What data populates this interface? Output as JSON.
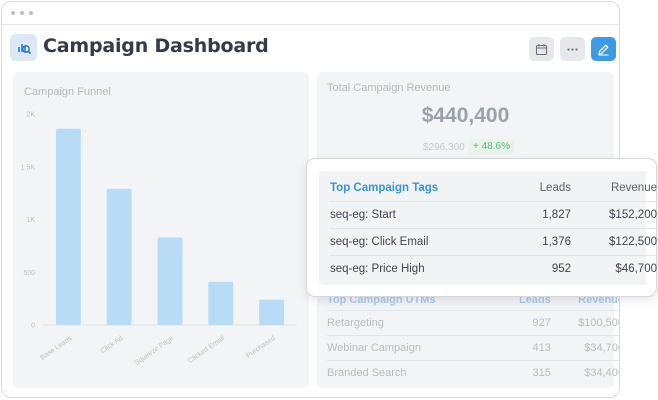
{
  "header": {
    "title": "Campaign Dashboard",
    "app_icon": "chart-search-icon",
    "actions": [
      {
        "icon": "calendar-icon"
      },
      {
        "icon": "more-horizontal-icon"
      },
      {
        "icon": "pencil-icon"
      }
    ]
  },
  "funnel": {
    "title": "Campaign Funnel",
    "chart_data": {
      "type": "bar",
      "categories": [
        "Base Leads",
        "Click Ad",
        "Squeeze Page",
        "Clicked Email",
        "Purchased"
      ],
      "values": [
        1860,
        1290,
        830,
        410,
        240
      ],
      "yticks": [
        "0",
        "500",
        "1K",
        "1.5K",
        "2K"
      ],
      "ylim": [
        0,
        2000
      ],
      "color": "#b8dcf5"
    }
  },
  "revenue": {
    "label": "Total Campaign Revenue",
    "value": "$440,400",
    "previous": "$296,300",
    "change": "+ 48.6%"
  },
  "tags": {
    "headers": [
      "Top Campaign Tags",
      "Leads",
      "Revenue"
    ],
    "rows": [
      {
        "name": "seq-eg: Start",
        "leads": "1,827",
        "revenue": "$152,200"
      },
      {
        "name": "seq-eg: Click Email",
        "leads": "1,376",
        "revenue": "$122,500"
      },
      {
        "name": "seq-eg: Price High",
        "leads": "952",
        "revenue": "$46,700"
      }
    ]
  },
  "utm": {
    "headers": [
      "Top Campaign UTMs",
      "Leads",
      "Revenue"
    ],
    "rows": [
      {
        "name": "Retargeting",
        "leads": "927",
        "revenue": "$100,500"
      },
      {
        "name": "Webinar Campaign",
        "leads": "413",
        "revenue": "$34,700"
      },
      {
        "name": "Branded Search",
        "leads": "315",
        "revenue": "$34,400"
      }
    ]
  },
  "colors": {
    "accent": "#3e9be3",
    "tag_header": "#3894d8",
    "positive": "#5cb879"
  }
}
